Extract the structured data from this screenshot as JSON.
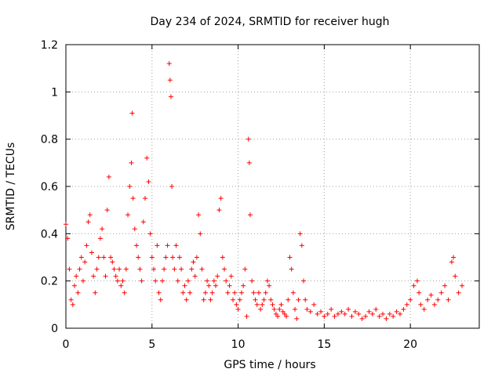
{
  "chart_data": {
    "type": "scatter",
    "title": "Day 234 of 2024, SRMTID for receiver hugh",
    "xlabel": "GPS time / hours",
    "ylabel": "SRMTID / TECUs",
    "xlim": [
      0,
      24
    ],
    "ylim": [
      0,
      1.2
    ],
    "xticks": [
      0,
      5,
      10,
      15,
      20
    ],
    "xtick_labels": [
      "0",
      "5",
      "10",
      "15",
      "20"
    ],
    "yticks": [
      0,
      0.2,
      0.4,
      0.6,
      0.8,
      1.0,
      1.2
    ],
    "ytick_labels": [
      "0",
      "0.2",
      "0.4",
      "0.6",
      "0.8",
      "1",
      "1.2"
    ],
    "grid": true,
    "marker": "+",
    "color": "#ff0000",
    "series": [
      {
        "name": "SRMTID",
        "x": [
          0.0,
          0.1,
          0.2,
          0.3,
          0.4,
          0.5,
          0.6,
          0.7,
          0.8,
          0.9,
          1.0,
          1.1,
          1.2,
          1.3,
          1.4,
          1.5,
          1.6,
          1.7,
          1.8,
          1.9,
          2.0,
          2.1,
          2.2,
          2.3,
          2.4,
          2.5,
          2.6,
          2.7,
          2.8,
          2.9,
          3.0,
          3.1,
          3.2,
          3.3,
          3.4,
          3.5,
          3.6,
          3.7,
          3.8,
          3.85,
          3.9,
          4.0,
          4.1,
          4.2,
          4.3,
          4.4,
          4.5,
          4.6,
          4.7,
          4.8,
          4.9,
          5.0,
          5.1,
          5.2,
          5.3,
          5.4,
          5.5,
          5.6,
          5.7,
          5.8,
          5.9,
          6.0,
          6.05,
          6.1,
          6.15,
          6.2,
          6.3,
          6.4,
          6.5,
          6.6,
          6.7,
          6.8,
          6.9,
          7.0,
          7.1,
          7.2,
          7.3,
          7.4,
          7.5,
          7.6,
          7.7,
          7.8,
          7.9,
          8.0,
          8.1,
          8.2,
          8.3,
          8.4,
          8.5,
          8.6,
          8.7,
          8.8,
          8.9,
          9.0,
          9.1,
          9.2,
          9.3,
          9.4,
          9.5,
          9.6,
          9.7,
          9.8,
          9.9,
          10.0,
          10.1,
          10.2,
          10.3,
          10.4,
          10.5,
          10.6,
          10.65,
          10.7,
          10.8,
          10.9,
          11.0,
          11.1,
          11.2,
          11.3,
          11.4,
          11.5,
          11.6,
          11.7,
          11.8,
          11.9,
          12.0,
          12.1,
          12.2,
          12.3,
          12.4,
          12.5,
          12.6,
          12.7,
          12.8,
          12.9,
          13.0,
          13.1,
          13.2,
          13.3,
          13.4,
          13.5,
          13.6,
          13.7,
          13.8,
          13.9,
          14.0,
          14.2,
          14.4,
          14.6,
          14.8,
          15.0,
          15.2,
          15.4,
          15.6,
          15.8,
          16.0,
          16.2,
          16.4,
          16.6,
          16.8,
          17.0,
          17.2,
          17.4,
          17.6,
          17.8,
          18.0,
          18.2,
          18.4,
          18.6,
          18.8,
          19.0,
          19.2,
          19.4,
          19.6,
          19.8,
          20.0,
          20.2,
          20.4,
          20.5,
          20.6,
          20.8,
          21.0,
          21.2,
          21.4,
          21.6,
          21.8,
          22.0,
          22.2,
          22.4,
          22.5,
          22.6,
          22.8,
          23.0
        ],
        "y": [
          0.44,
          0.38,
          0.25,
          0.12,
          0.1,
          0.18,
          0.22,
          0.15,
          0.25,
          0.3,
          0.2,
          0.28,
          0.35,
          0.45,
          0.48,
          0.32,
          0.22,
          0.15,
          0.25,
          0.3,
          0.38,
          0.42,
          0.3,
          0.22,
          0.5,
          0.64,
          0.3,
          0.28,
          0.25,
          0.22,
          0.2,
          0.25,
          0.18,
          0.2,
          0.15,
          0.25,
          0.48,
          0.6,
          0.7,
          0.91,
          0.55,
          0.42,
          0.35,
          0.3,
          0.25,
          0.2,
          0.45,
          0.55,
          0.72,
          0.62,
          0.4,
          0.3,
          0.25,
          0.2,
          0.35,
          0.15,
          0.12,
          0.2,
          0.25,
          0.3,
          0.35,
          1.12,
          1.05,
          0.98,
          0.6,
          0.3,
          0.25,
          0.35,
          0.2,
          0.3,
          0.25,
          0.15,
          0.18,
          0.12,
          0.2,
          0.15,
          0.25,
          0.28,
          0.22,
          0.3,
          0.48,
          0.4,
          0.25,
          0.12,
          0.15,
          0.2,
          0.18,
          0.12,
          0.15,
          0.2,
          0.18,
          0.22,
          0.5,
          0.55,
          0.3,
          0.25,
          0.2,
          0.15,
          0.18,
          0.22,
          0.12,
          0.15,
          0.1,
          0.08,
          0.12,
          0.15,
          0.18,
          0.25,
          0.05,
          0.8,
          0.7,
          0.48,
          0.2,
          0.15,
          0.12,
          0.1,
          0.15,
          0.08,
          0.1,
          0.12,
          0.15,
          0.2,
          0.18,
          0.12,
          0.1,
          0.08,
          0.06,
          0.05,
          0.08,
          0.1,
          0.07,
          0.06,
          0.05,
          0.12,
          0.3,
          0.25,
          0.15,
          0.08,
          0.04,
          0.12,
          0.4,
          0.35,
          0.2,
          0.12,
          0.08,
          0.07,
          0.1,
          0.06,
          0.07,
          0.05,
          0.06,
          0.08,
          0.05,
          0.06,
          0.07,
          0.06,
          0.08,
          0.05,
          0.07,
          0.06,
          0.04,
          0.05,
          0.07,
          0.06,
          0.08,
          0.05,
          0.06,
          0.04,
          0.06,
          0.05,
          0.07,
          0.06,
          0.08,
          0.1,
          0.12,
          0.18,
          0.2,
          0.15,
          0.1,
          0.08,
          0.12,
          0.14,
          0.1,
          0.12,
          0.15,
          0.18,
          0.12,
          0.28,
          0.3,
          0.22,
          0.15,
          0.18
        ]
      }
    ]
  }
}
